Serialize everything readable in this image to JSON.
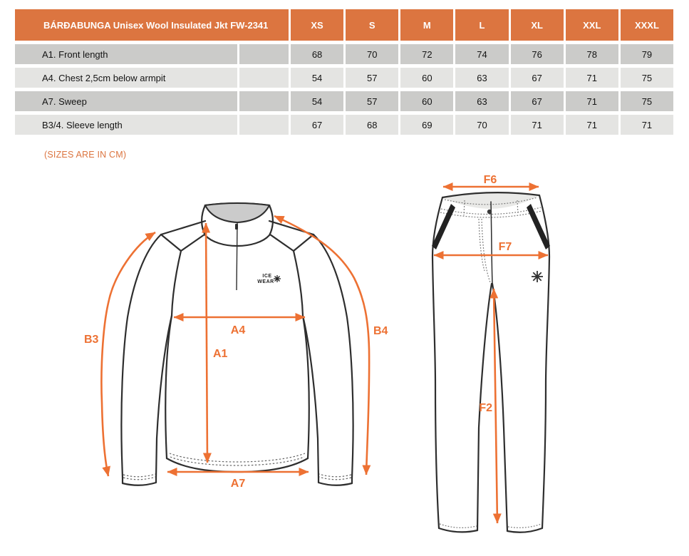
{
  "table": {
    "title": "BÁRÐABUNGA Unisex Wool Insulated Jkt FW-2341",
    "sizes": [
      "XS",
      "S",
      "M",
      "L",
      "XL",
      "XXL",
      "XXXL"
    ],
    "rows": [
      {
        "label": "A1. Front length",
        "values": [
          "68",
          "70",
          "72",
          "74",
          "76",
          "78",
          "79"
        ]
      },
      {
        "label": "A4. Chest 2,5cm below armpit",
        "values": [
          "54",
          "57",
          "60",
          "63",
          "67",
          "71",
          "75"
        ]
      },
      {
        "label": "A7. Sweep",
        "values": [
          "54",
          "57",
          "60",
          "63",
          "67",
          "71",
          "75"
        ]
      },
      {
        "label": "B3/4. Sleeve length",
        "values": [
          "67",
          "68",
          "69",
          "70",
          "71",
          "71",
          "71"
        ]
      }
    ]
  },
  "note": "(SIZES ARE IN CM)",
  "diagram": {
    "jacket": {
      "logo_line1": "ICE",
      "logo_line2": "WEAR",
      "labels": {
        "a1": "A1",
        "a4": "A4",
        "a7": "A7",
        "b3": "B3",
        "b4": "B4"
      }
    },
    "pants": {
      "labels": {
        "f2": "F2",
        "f6": "F6",
        "f7": "F7"
      }
    }
  },
  "colors": {
    "header_orange": "#DC7540",
    "arrow_orange": "#ED7133",
    "row_dark": "#CBCBC9",
    "row_light": "#E4E4E2",
    "garment_line": "#2E2E2E",
    "collar_gray": "#CBCBCB"
  }
}
